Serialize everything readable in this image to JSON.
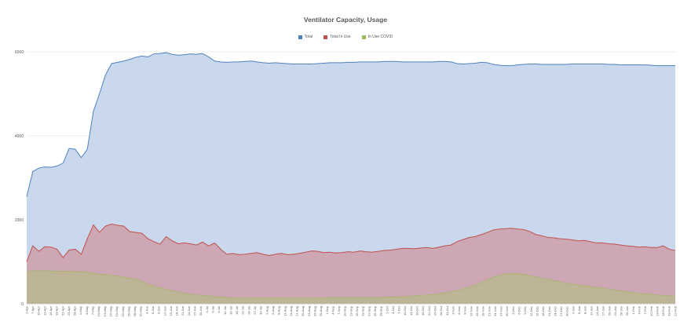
{
  "chart_data": {
    "type": "area",
    "title": "Ventilator Capacity, Usage",
    "xlabel": "",
    "ylabel": "",
    "ylim": [
      0,
      6000
    ],
    "y_ticks": [
      "0",
      "2000",
      "4000",
      "6000"
    ],
    "grid": true,
    "legend_position": "top",
    "x_tick_labels": [
      "3-Apr",
      "7-Apr",
      "10-Apr",
      "13-Apr",
      "16-Apr",
      "19-Apr",
      "22-Apr",
      "25-Apr",
      "28-Apr",
      "1-May",
      "4-May",
      "7-May",
      "10-May",
      "13-May",
      "16-May",
      "19-May",
      "22-May",
      "25-May",
      "28-May",
      "31-May",
      "3-Jun",
      "6-Jun",
      "9-Jun",
      "12-Jun",
      "15-Jun",
      "18-Jun",
      "21-Jun",
      "24-Jun",
      "27-Jun",
      "30-Jun",
      "3-Jul",
      "6-Jul",
      "9-Jul",
      "12-Jul",
      "15-Jul",
      "18-Jul",
      "21-Jul",
      "24-Jul",
      "27-Jul",
      "30-Jul",
      "2-Aug",
      "5-Aug",
      "8-Aug",
      "11-Aug",
      "14-Aug",
      "17-Aug",
      "20-Aug",
      "23-Aug",
      "26-Aug",
      "29-Aug",
      "1-Sep",
      "4-Sep",
      "7-Sep",
      "10-Sep",
      "13-Sep",
      "16-Sep",
      "19-Sep",
      "22-Sep",
      "25-Sep",
      "28-Sep",
      "1-Oct",
      "4-Oct",
      "7-Oct",
      "10-Oct",
      "13-Oct",
      "16-Oct",
      "19-Oct",
      "22-Oct",
      "25-Oct",
      "28-Oct",
      "31-Oct",
      "3-Nov",
      "6-Nov",
      "9-Nov",
      "12-Nov",
      "15-Nov",
      "18-Nov",
      "21-Nov",
      "24-Nov",
      "27-Nov",
      "30-Nov",
      "3-Dec",
      "6-Dec",
      "9-Dec",
      "12-Dec",
      "15-Dec",
      "18-Dec",
      "21-Dec",
      "24-Dec",
      "27-Dec",
      "30-Dec",
      "2-Jan",
      "5-Jan",
      "8-Jan",
      "11-Jan",
      "14-Jan",
      "17-Jan",
      "20-Jan",
      "23-Jan",
      "26-Jan",
      "29-Jan",
      "1-Feb",
      "4-Feb",
      "7-Feb",
      "10-Feb",
      "13-Feb",
      "16-Feb",
      "19-Feb",
      "22-Feb"
    ],
    "series": [
      {
        "name": "Total",
        "color": "#4F81BD",
        "fill": "#C9D8EC",
        "values": [
          2550,
          3150,
          3230,
          3260,
          3250,
          3280,
          3350,
          3700,
          3680,
          3480,
          3680,
          4580,
          5000,
          5450,
          5720,
          5750,
          5780,
          5820,
          5870,
          5900,
          5880,
          5950,
          5960,
          5980,
          5940,
          5920,
          5930,
          5950,
          5940,
          5960,
          5880,
          5780,
          5760,
          5750,
          5760,
          5760,
          5770,
          5780,
          5760,
          5740,
          5730,
          5740,
          5730,
          5720,
          5710,
          5710,
          5710,
          5710,
          5720,
          5730,
          5740,
          5740,
          5740,
          5750,
          5750,
          5760,
          5760,
          5760,
          5760,
          5770,
          5770,
          5770,
          5760,
          5760,
          5760,
          5760,
          5760,
          5760,
          5770,
          5770,
          5760,
          5720,
          5710,
          5720,
          5730,
          5750,
          5740,
          5700,
          5680,
          5670,
          5670,
          5690,
          5700,
          5710,
          5710,
          5700,
          5700,
          5700,
          5700,
          5700,
          5710,
          5710,
          5710,
          5710,
          5710,
          5710,
          5700,
          5700,
          5690,
          5690,
          5690,
          5690,
          5690,
          5680,
          5670,
          5670,
          5670,
          5670
        ]
      },
      {
        "name": "Total In Use",
        "color": "#C0504D",
        "fill": "#CDA7B3",
        "values": [
          1000,
          1380,
          1250,
          1360,
          1350,
          1300,
          1100,
          1280,
          1300,
          1180,
          1550,
          1880,
          1700,
          1850,
          1900,
          1870,
          1850,
          1720,
          1700,
          1680,
          1550,
          1480,
          1420,
          1600,
          1500,
          1430,
          1450,
          1430,
          1400,
          1470,
          1380,
          1450,
          1300,
          1180,
          1200,
          1170,
          1180,
          1200,
          1220,
          1180,
          1150,
          1180,
          1200,
          1170,
          1180,
          1200,
          1230,
          1260,
          1250,
          1220,
          1230,
          1210,
          1220,
          1240,
          1230,
          1260,
          1240,
          1230,
          1250,
          1270,
          1280,
          1300,
          1320,
          1320,
          1310,
          1330,
          1340,
          1320,
          1350,
          1380,
          1400,
          1480,
          1530,
          1580,
          1600,
          1650,
          1700,
          1760,
          1780,
          1790,
          1800,
          1780,
          1770,
          1720,
          1650,
          1620,
          1580,
          1570,
          1550,
          1540,
          1520,
          1500,
          1510,
          1480,
          1450,
          1450,
          1430,
          1420,
          1400,
          1380,
          1370,
          1350,
          1360,
          1340,
          1340,
          1380,
          1300,
          1270
        ]
      },
      {
        "name": "In Use COVID",
        "color": "#9BBB59",
        "fill": "#BDB596",
        "values": [
          760,
          790,
          780,
          790,
          780,
          780,
          770,
          780,
          760,
          770,
          750,
          730,
          700,
          700,
          680,
          660,
          640,
          610,
          580,
          540,
          470,
          420,
          380,
          350,
          310,
          280,
          250,
          230,
          210,
          200,
          185,
          170,
          160,
          150,
          145,
          140,
          140,
          140,
          145,
          145,
          145,
          145,
          140,
          140,
          140,
          140,
          140,
          140,
          145,
          145,
          150,
          150,
          150,
          150,
          150,
          150,
          150,
          150,
          150,
          150,
          160,
          165,
          170,
          180,
          190,
          200,
          210,
          220,
          240,
          260,
          290,
          320,
          360,
          400,
          450,
          510,
          570,
          630,
          680,
          710,
          720,
          720,
          700,
          670,
          640,
          610,
          580,
          550,
          520,
          490,
          470,
          450,
          430,
          410,
          390,
          370,
          350,
          330,
          310,
          290,
          270,
          250,
          240,
          230,
          210,
          200,
          190,
          180
        ]
      }
    ]
  }
}
